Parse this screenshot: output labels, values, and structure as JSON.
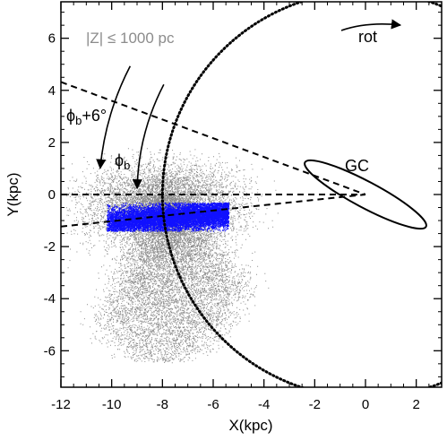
{
  "chart_data": {
    "type": "scatter",
    "xlabel": "X(kpc)",
    "ylabel": "Y(kpc)",
    "xlim": [
      -12,
      3
    ],
    "ylim": [
      -7.4,
      7.4
    ],
    "x_ticks": [
      -12,
      -10,
      -8,
      -6,
      -4,
      -2,
      0,
      2
    ],
    "y_ticks": [
      -6,
      -4,
      -2,
      0,
      2,
      4,
      6
    ],
    "grid": false,
    "annotations": {
      "z_cut": "|Z| ≤ 1000 pc",
      "rotation": "rot",
      "galactic_center": "GC",
      "phi_b": "ϕb",
      "phi_b_plus": "ϕb+6°"
    },
    "sun_position": [
      -8.0,
      0.0
    ],
    "solar_circle_radius_kpc": 8.0,
    "galactic_center": [
      0.0,
      0.0
    ],
    "bar_ellipse": {
      "center": [
        0.0,
        0.0
      ],
      "semi_major_kpc": 2.7,
      "semi_minor_kpc": 0.5,
      "angle_deg": -28
    },
    "sightlines": [
      {
        "from": [
          -12,
          0.0
        ],
        "to": [
          0,
          0
        ]
      },
      {
        "from": [
          -12,
          -1.23
        ],
        "to": [
          0,
          0
        ]
      },
      {
        "from": [
          -12,
          4.32
        ],
        "to": [
          0,
          0
        ]
      }
    ],
    "arc_arrows": [
      {
        "label": "ϕb",
        "radius_kpc": 9.0,
        "from_deg": 28,
        "to_deg": 1.5
      },
      {
        "label": "ϕb+6°",
        "radius_kpc": 10.5,
        "from_deg": 28,
        "to_deg": 5.5
      }
    ],
    "series": [
      {
        "color": "#8c8c8c",
        "density": {
          "x_range": [
            -11.8,
            -3.4
          ],
          "y_range": [
            -7.0,
            1.8
          ],
          "apex": [
            -8.0,
            0.0
          ]
        }
      },
      {
        "color": "#1010ff",
        "density": {
          "x_range": [
            -10.2,
            -5.4
          ],
          "y_range": [
            -1.4,
            -0.3
          ],
          "axis_slope": 0.082
        }
      }
    ]
  }
}
